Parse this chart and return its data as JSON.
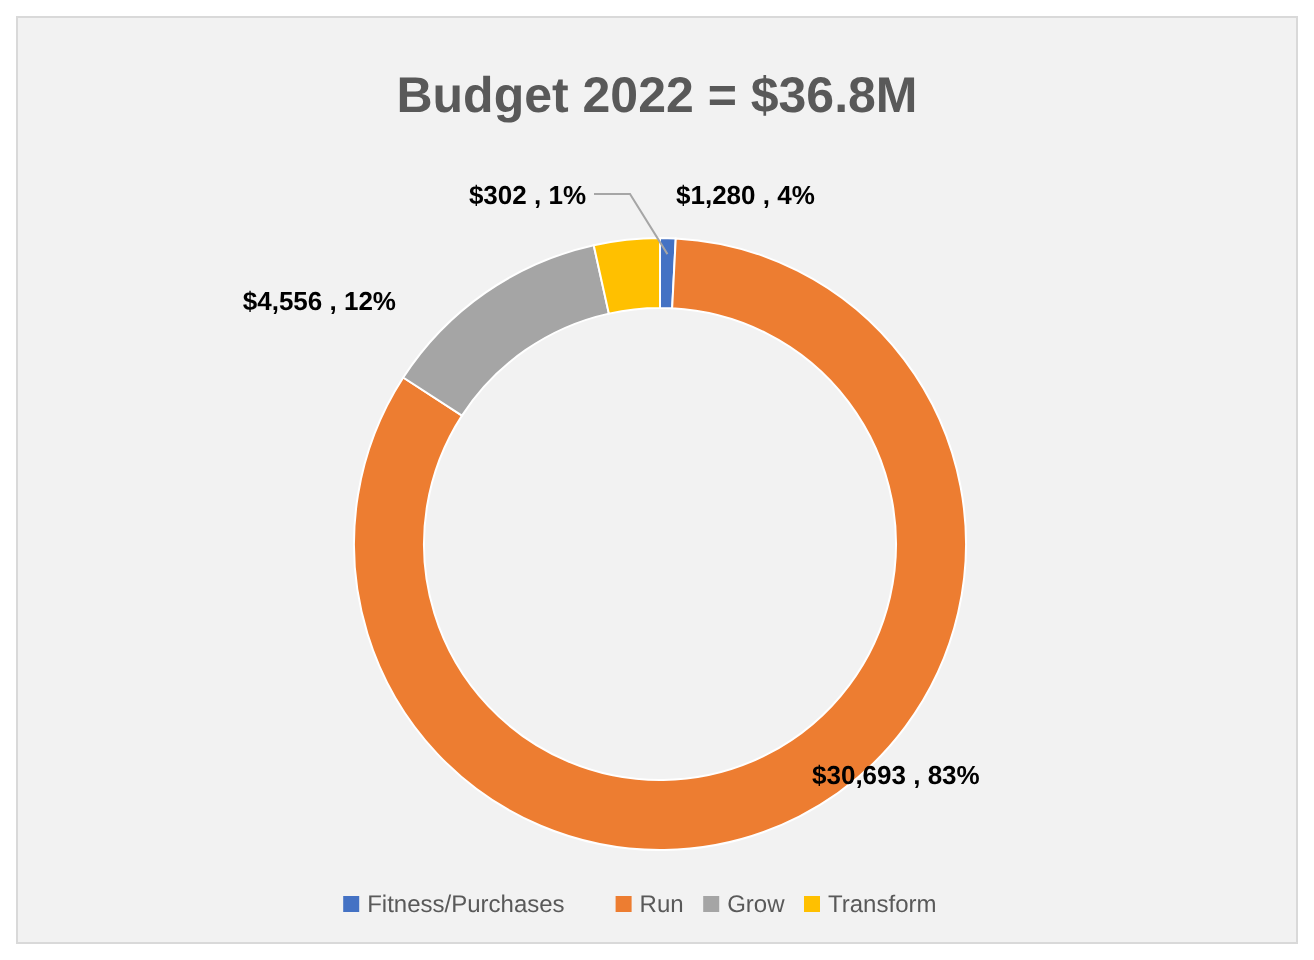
{
  "chart_data": {
    "type": "donut",
    "title": "Budget 2022 = $36.8M",
    "categories": [
      "Fitness/Purchases",
      "Run",
      "Grow",
      "Transform"
    ],
    "values": [
      302,
      30693,
      4556,
      1280
    ],
    "colors": [
      "#4472c4",
      "#ed7d31",
      "#a5a5a5",
      "#ffc000"
    ],
    "value_labels": [
      "$302 , 1%",
      "$30,693 , 83%",
      "$4,556 , 12%",
      "$1,280 , 4%"
    ],
    "legend": "bottom"
  }
}
